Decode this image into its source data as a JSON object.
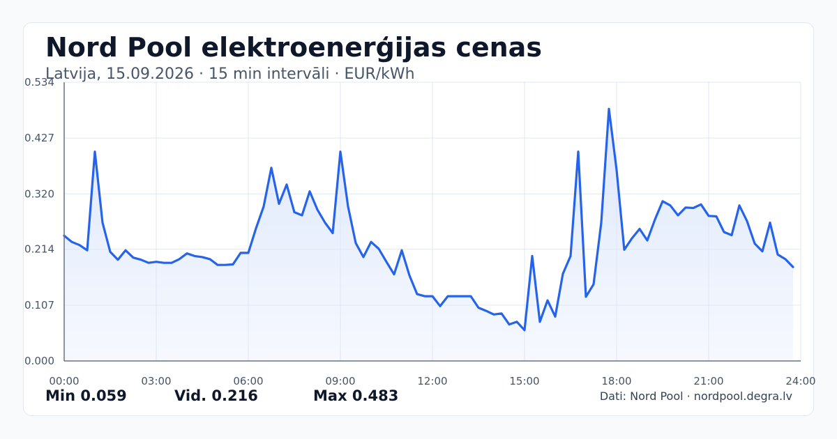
{
  "header": {
    "title": "Nord Pool elektroenerģijas cenas",
    "subtitle": "Latvija, 15.09.2026 · 15 min intervāli · EUR/kWh"
  },
  "stats": {
    "min": "Min 0.059",
    "avg": "Vid. 0.216",
    "max": "Max 0.483"
  },
  "source": "Dati: Nord Pool · nordpool.degra.lv",
  "colors": {
    "line": "#2563eb",
    "fill": "#dbe6fb",
    "grid": "#e2e8f0",
    "axis": "#64748b",
    "text": "#475569"
  },
  "chart_data": {
    "type": "area",
    "title": "Nord Pool elektroenerģijas cenas",
    "xlabel": "",
    "ylabel": "",
    "xlim": [
      0,
      24
    ],
    "ylim": [
      0,
      0.534
    ],
    "y_ticks": [
      "0.000",
      "0.107",
      "0.214",
      "0.320",
      "0.427",
      "0.534"
    ],
    "x_ticks": [
      "00:00",
      "03:00",
      "06:00",
      "09:00",
      "12:00",
      "15:00",
      "18:00",
      "21:00",
      "24:00"
    ],
    "grid": true,
    "series": [
      {
        "x": [
          0.0,
          0.25,
          0.5,
          0.75,
          1.0,
          1.25,
          1.5,
          1.75,
          2.0,
          2.25,
          2.5,
          2.75,
          3.0,
          3.25,
          3.5,
          3.75,
          4.0,
          4.25,
          4.5,
          4.75,
          5.0,
          5.25,
          5.5,
          5.75,
          6.0,
          6.25,
          6.5,
          6.75,
          7.0,
          7.25,
          7.5,
          7.75,
          8.0,
          8.25,
          8.5,
          8.75,
          9.0,
          9.25,
          9.5,
          9.75,
          10.0,
          10.25,
          10.5,
          10.75,
          11.0,
          11.25,
          11.5,
          11.75,
          12.0,
          12.25,
          12.5,
          12.75,
          13.0,
          13.25,
          13.5,
          13.75,
          14.0,
          14.25,
          14.5,
          14.75,
          15.0,
          15.25,
          15.5,
          15.75,
          16.0,
          16.25,
          16.5,
          16.75,
          17.0,
          17.25,
          17.5,
          17.75,
          18.0,
          18.25,
          18.5,
          18.75,
          19.0,
          19.25,
          19.5,
          19.75,
          20.0,
          20.25,
          20.5,
          20.75,
          21.0,
          21.25,
          21.5,
          21.75,
          22.0,
          22.25,
          22.5,
          22.75,
          23.0,
          23.25,
          23.5,
          23.75
        ],
        "y": [
          0.24,
          0.228,
          0.222,
          0.212,
          0.401,
          0.265,
          0.209,
          0.194,
          0.212,
          0.198,
          0.194,
          0.188,
          0.19,
          0.188,
          0.188,
          0.195,
          0.206,
          0.201,
          0.199,
          0.195,
          0.184,
          0.184,
          0.185,
          0.207,
          0.207,
          0.254,
          0.296,
          0.37,
          0.301,
          0.338,
          0.285,
          0.279,
          0.325,
          0.29,
          0.265,
          0.245,
          0.401,
          0.296,
          0.226,
          0.199,
          0.228,
          0.215,
          0.19,
          0.166,
          0.212,
          0.164,
          0.128,
          0.124,
          0.124,
          0.105,
          0.124,
          0.124,
          0.124,
          0.124,
          0.102,
          0.096,
          0.089,
          0.091,
          0.07,
          0.075,
          0.059,
          0.201,
          0.075,
          0.116,
          0.085,
          0.167,
          0.201,
          0.401,
          0.123,
          0.147,
          0.265,
          0.483,
          0.366,
          0.213,
          0.235,
          0.253,
          0.231,
          0.271,
          0.306,
          0.298,
          0.279,
          0.294,
          0.293,
          0.3,
          0.278,
          0.277,
          0.247,
          0.241,
          0.298,
          0.268,
          0.225,
          0.21,
          0.265,
          0.204,
          0.195,
          0.18
        ]
      }
    ]
  }
}
